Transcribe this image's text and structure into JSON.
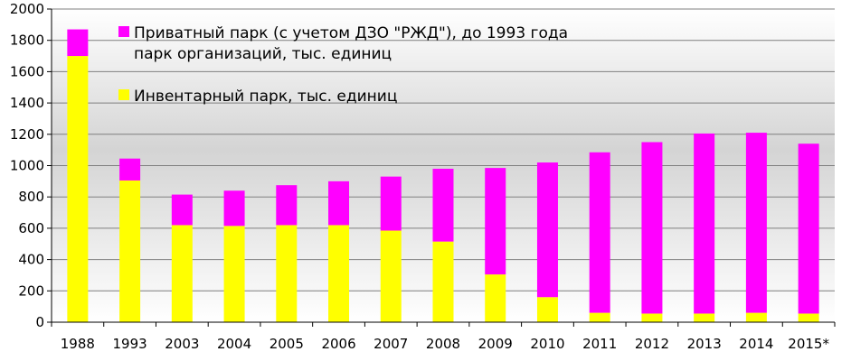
{
  "chart_data": {
    "type": "bar",
    "stacked": true,
    "categories": [
      "1988",
      "1993",
      "2003",
      "2004",
      "2005",
      "2006",
      "2007",
      "2008",
      "2009",
      "2010",
      "2011",
      "2012",
      "2013",
      "2014",
      "2015*"
    ],
    "series": [
      {
        "name": "Инвентарный парк, тыс. единиц",
        "color": "#ffff00",
        "values": [
          1700,
          905,
          620,
          615,
          620,
          620,
          585,
          515,
          305,
          160,
          60,
          55,
          55,
          60,
          55
        ]
      },
      {
        "name_lines": [
          "Приватный парк (с учетом ДЗО \"РЖД\"), до 1993 года",
          "парк организаций, тыс. единиц"
        ],
        "color": "#ff00ff",
        "values": [
          170,
          140,
          195,
          225,
          255,
          280,
          345,
          465,
          680,
          860,
          1025,
          1095,
          1150,
          1150,
          1085
        ]
      }
    ],
    "yticks": [
      "0",
      "200",
      "400",
      "600",
      "800",
      "1000",
      "1200",
      "1400",
      "1600",
      "1800",
      "2000"
    ],
    "ylim": [
      0,
      2000
    ],
    "grid": true,
    "legend_position": "top-center"
  }
}
